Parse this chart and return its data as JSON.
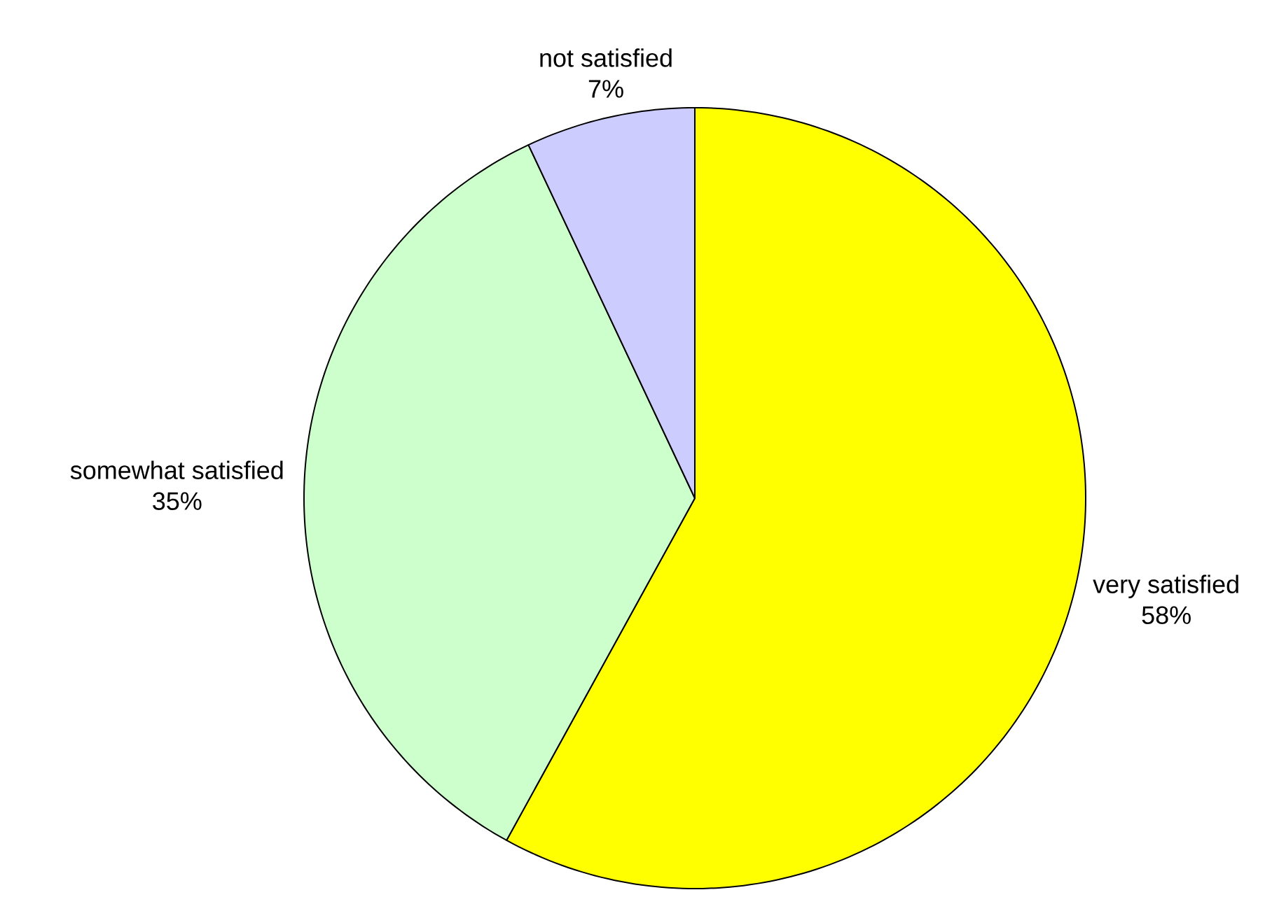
{
  "chart_data": {
    "type": "pie",
    "categories": [
      "very satisfied",
      "somewhat satisfied",
      "not satisfied"
    ],
    "values": [
      58,
      35,
      7
    ],
    "colors": [
      "#ffff00",
      "#ccffcc",
      "#ccccff"
    ],
    "value_labels": [
      "58%",
      "35%",
      "7%"
    ]
  }
}
